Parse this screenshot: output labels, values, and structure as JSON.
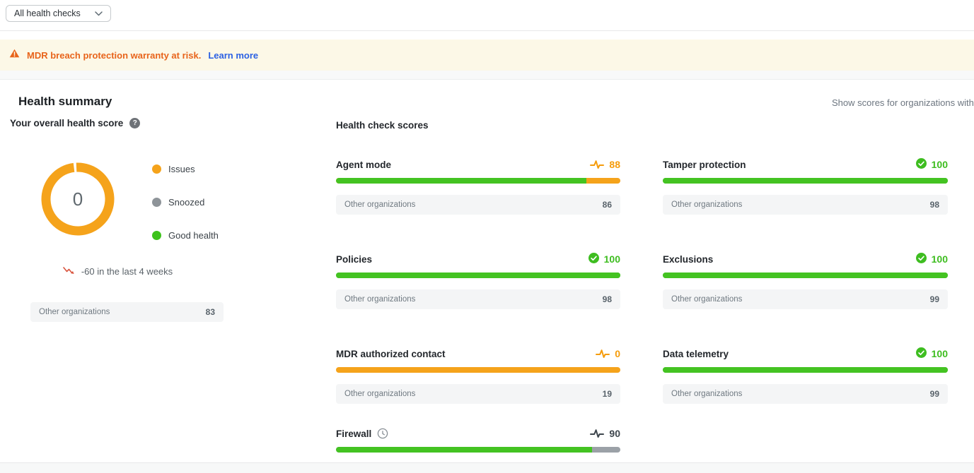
{
  "filter": {
    "value": "All health checks"
  },
  "banner": {
    "message": "MDR breach protection warranty at risk.",
    "link_label": "Learn more"
  },
  "summary": {
    "title": "Health summary",
    "scores_note": "Show scores for organizations with",
    "overall_label": "Your overall health score",
    "overall_score": "0",
    "legend": [
      {
        "label": "Issues",
        "color": "#F5A31B"
      },
      {
        "label": "Snoozed",
        "color": "#8E9499"
      },
      {
        "label": "Good health",
        "color": "#3DC21B"
      }
    ],
    "trend_text": "-60 in the last 4 weeks",
    "comparison_label": "Other organizations",
    "comparison_value": "83"
  },
  "checks": {
    "title": "Health check scores",
    "comparison_label": "Other organizations",
    "cards": [
      {
        "name": "Agent mode",
        "score": "88",
        "score_pct": 88,
        "status": "warning",
        "other": "86"
      },
      {
        "name": "Tamper protection",
        "score": "100",
        "score_pct": 100,
        "status": "good",
        "other": "98"
      },
      {
        "name": "Policies",
        "score": "100",
        "score_pct": 100,
        "status": "good",
        "other": "98"
      },
      {
        "name": "Exclusions",
        "score": "100",
        "score_pct": 100,
        "status": "good",
        "other": "99"
      },
      {
        "name": "MDR authorized contact",
        "score": "0",
        "score_pct": 0,
        "status": "warning",
        "other": "19"
      },
      {
        "name": "Data telemetry",
        "score": "100",
        "score_pct": 100,
        "status": "good",
        "other": "99"
      },
      {
        "name": "Firewall",
        "score": "90",
        "score_pct": 90,
        "status": "snoozed"
      }
    ]
  },
  "colors": {
    "issues_orange": "#F5A31B",
    "good_green": "#44C322",
    "snoozed_gray": "#9BA1A7",
    "alert_text_orange": "#E8641B",
    "link_blue": "#2B61E3",
    "trend_red": "#D9553F"
  }
}
